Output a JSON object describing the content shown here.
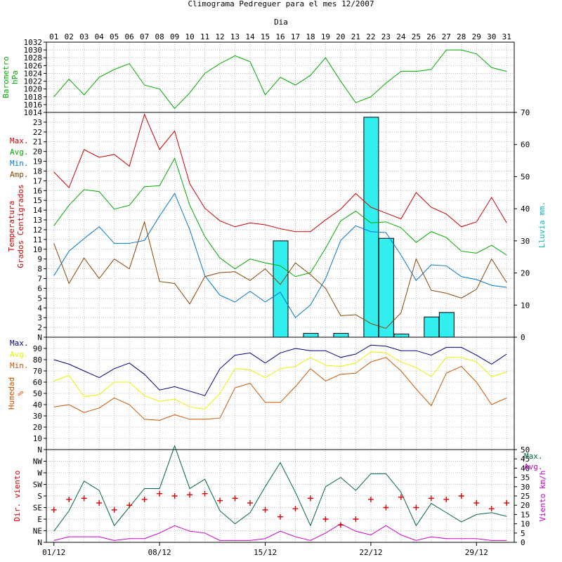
{
  "title": "Climograma Pedreguer para el mes 12/2007",
  "top_axis_label": "Dia",
  "days": [
    "01",
    "02",
    "03",
    "04",
    "05",
    "06",
    "07",
    "08",
    "09",
    "10",
    "11",
    "12",
    "13",
    "14",
    "15",
    "16",
    "17",
    "18",
    "19",
    "20",
    "21",
    "22",
    "23",
    "24",
    "25",
    "26",
    "27",
    "28",
    "29",
    "30",
    "31"
  ],
  "bottom_axis_labels": [
    "01/12",
    "08/12",
    "15/12",
    "22/12",
    "29/12"
  ],
  "colors": {
    "pressure": "#00aa00",
    "temp_max": "#cc0000",
    "temp_avg": "#00aa00",
    "temp_min": "#0077cc",
    "temp_amp": "#884400",
    "rain": "#33eeee",
    "hum_max": "#000080",
    "hum_avg": "#eeee00",
    "hum_min": "#cc5500",
    "wind_max": "#006644",
    "wind_avg": "#cc00cc",
    "wind_dir": "#dd0000"
  },
  "chart_data": [
    {
      "type": "line",
      "ylabel": "Barometro hPa",
      "ylabel_lines": [
        "Barometro",
        "hPa"
      ],
      "ylim": [
        1014,
        1032
      ],
      "yticks": [
        1014,
        1016,
        1018,
        1020,
        1022,
        1024,
        1026,
        1028,
        1030,
        1032
      ],
      "series": [
        {
          "values": [
            1018,
            1022.5,
            1018.5,
            1023,
            1025,
            1026.5,
            1021,
            1020,
            1015,
            1019,
            1024,
            1026.5,
            1028.5,
            1027,
            1018.5,
            1023,
            1021,
            1023.5,
            1028,
            1022,
            1016.5,
            1018,
            1021.5,
            1024.5,
            1024.5,
            1025,
            1030,
            1030,
            1029,
            1025.5,
            1024.5
          ]
        }
      ]
    },
    {
      "type": "line+bar",
      "ylabel": "Temperatura Grados Centigrados",
      "ylabel_lines": [
        "Temperatura",
        "Grados Centigrados"
      ],
      "ylabel_right": "Lluvia mm.",
      "ylim": [
        1,
        24
      ],
      "yticks": [
        2,
        3,
        4,
        5,
        6,
        7,
        8,
        9,
        10,
        11,
        12,
        13,
        14,
        15,
        16,
        17,
        18,
        19,
        20,
        21,
        22,
        23
      ],
      "ylim_right": [
        0,
        70
      ],
      "yticks_right": [
        0,
        10,
        20,
        30,
        40,
        50,
        60,
        70
      ],
      "legend": [
        "Max.",
        "Avg.",
        "Min.",
        "Amp."
      ],
      "series": [
        {
          "name": "Max.",
          "values": [
            17.9,
            16.3,
            20.2,
            19.4,
            19.7,
            18.5,
            23.8,
            20.2,
            22.1,
            16.7,
            14.2,
            12.9,
            12.3,
            12.7,
            12.5,
            12.1,
            11.8,
            11.8,
            13.0,
            14.1,
            15.7,
            14.3,
            13.7,
            13.1,
            15.8,
            14.3,
            13.6,
            12.3,
            12.8,
            15.3,
            12.7
          ]
        },
        {
          "name": "Avg.",
          "values": [
            12.4,
            14.5,
            16.1,
            15.9,
            14.1,
            14.5,
            16.4,
            16.5,
            19.3,
            14.5,
            11.3,
            9.1,
            8.0,
            9.0,
            8.6,
            8.3,
            7.2,
            7.6,
            10.1,
            12.9,
            13.9,
            12.7,
            12.8,
            12.2,
            10.7,
            11.8,
            11.2,
            9.8,
            9.6,
            10.4,
            9.4
          ]
        },
        {
          "name": "Min.",
          "values": [
            7.3,
            9.8,
            11.1,
            12.3,
            10.6,
            10.6,
            10.9,
            13.4,
            15.7,
            12.0,
            7.3,
            5.3,
            4.6,
            5.7,
            4.6,
            5.6,
            3.0,
            4.3,
            7.0,
            10.9,
            12.4,
            11.8,
            11.7,
            9.4,
            6.8,
            8.4,
            8.3,
            7.2,
            6.9,
            6.3,
            6.1
          ]
        },
        {
          "name": "Amp.",
          "values": [
            10.6,
            6.5,
            9.1,
            7.0,
            9.0,
            8.0,
            12.8,
            6.7,
            6.5,
            4.4,
            7.2,
            7.6,
            7.7,
            6.8,
            8.0,
            6.4,
            8.6,
            7.4,
            6.0,
            3.2,
            3.3,
            2.4,
            1.9,
            3.5,
            9.0,
            5.8,
            5.5,
            5.0,
            5.9,
            9.0,
            6.6
          ]
        },
        {
          "name": "Lluvia",
          "kind": "bar",
          "values": [
            0,
            0,
            0,
            0,
            0,
            0,
            0,
            0,
            0,
            0,
            0,
            0,
            0,
            0,
            0,
            30,
            0,
            1.2,
            0,
            1.2,
            0,
            68.5,
            30.8,
            1.0,
            0,
            6.3,
            7.7,
            0,
            0,
            0,
            0
          ]
        }
      ]
    },
    {
      "type": "line",
      "ylabel": "Humedad %",
      "ylabel_lines": [
        "Humedad",
        "%"
      ],
      "ylim": [
        0,
        100
      ],
      "yticks": [
        10,
        20,
        30,
        40,
        50,
        60,
        70,
        80,
        90
      ],
      "legend": [
        "Max.",
        "Avg.",
        "Min."
      ],
      "series": [
        {
          "name": "Max.",
          "values": [
            80,
            76,
            70,
            64,
            72,
            77,
            67,
            53,
            56,
            52,
            48,
            72,
            84,
            86,
            77,
            86,
            90,
            88,
            88,
            82,
            85,
            93,
            92,
            88,
            88,
            84,
            91,
            91,
            84,
            76,
            85
          ]
        },
        {
          "name": "Avg.",
          "values": [
            61,
            66,
            47,
            49,
            60,
            60,
            48,
            43,
            45,
            38,
            36,
            50,
            72,
            71,
            64,
            72,
            74,
            82,
            75,
            74,
            77,
            87,
            86,
            78,
            73,
            65,
            82,
            82,
            78,
            65,
            69
          ]
        },
        {
          "name": "Min.",
          "values": [
            38,
            40,
            33,
            37,
            46,
            40,
            27,
            26,
            31,
            27,
            27,
            28,
            55,
            59,
            42,
            42,
            56,
            72,
            61,
            67,
            68,
            78,
            82,
            70,
            54,
            39,
            68,
            74,
            60,
            40,
            46
          ]
        }
      ]
    },
    {
      "type": "line+scatter",
      "ylabel": "Dir. viento",
      "yticks_labels": [
        "N",
        "NE",
        "E",
        "SE",
        "S",
        "SW",
        "W",
        "NW",
        "N"
      ],
      "ylabel_right": "Viento km/h",
      "ylim_right": [
        0,
        50
      ],
      "yticks_right": [
        0,
        5,
        10,
        15,
        20,
        25,
        30,
        35,
        40,
        45,
        50
      ],
      "legend": [
        "Max.",
        "Avg."
      ],
      "series": [
        {
          "name": "Max.",
          "values": [
            6,
            17,
            33,
            28,
            9,
            19,
            29,
            29,
            52,
            29,
            34,
            17,
            10,
            16,
            30,
            43,
            27,
            9,
            30,
            35,
            28,
            37,
            37,
            27,
            9,
            21,
            16,
            11,
            15,
            16,
            14
          ]
        },
        {
          "name": "Avg.",
          "values": [
            1,
            3,
            3,
            3,
            1,
            2,
            2,
            5,
            9,
            6,
            5,
            1,
            1,
            1,
            2,
            6,
            3,
            1,
            5,
            10,
            6,
            4,
            9,
            4,
            1,
            3,
            2,
            2,
            2,
            1,
            1
          ]
        },
        {
          "name": "Dir.",
          "kind": "scatter",
          "values": [
            2.8,
            3.7,
            3.8,
            3.4,
            2.8,
            3.2,
            3.7,
            4.2,
            4.0,
            4.1,
            4.2,
            3.6,
            3.8,
            3.4,
            2.8,
            2.2,
            2.9,
            3.8,
            2.0,
            1.5,
            2.0,
            3.7,
            3.0,
            3.9,
            3.0,
            3.8,
            3.7,
            4.0,
            3.4,
            2.9,
            3.4
          ]
        }
      ]
    }
  ]
}
